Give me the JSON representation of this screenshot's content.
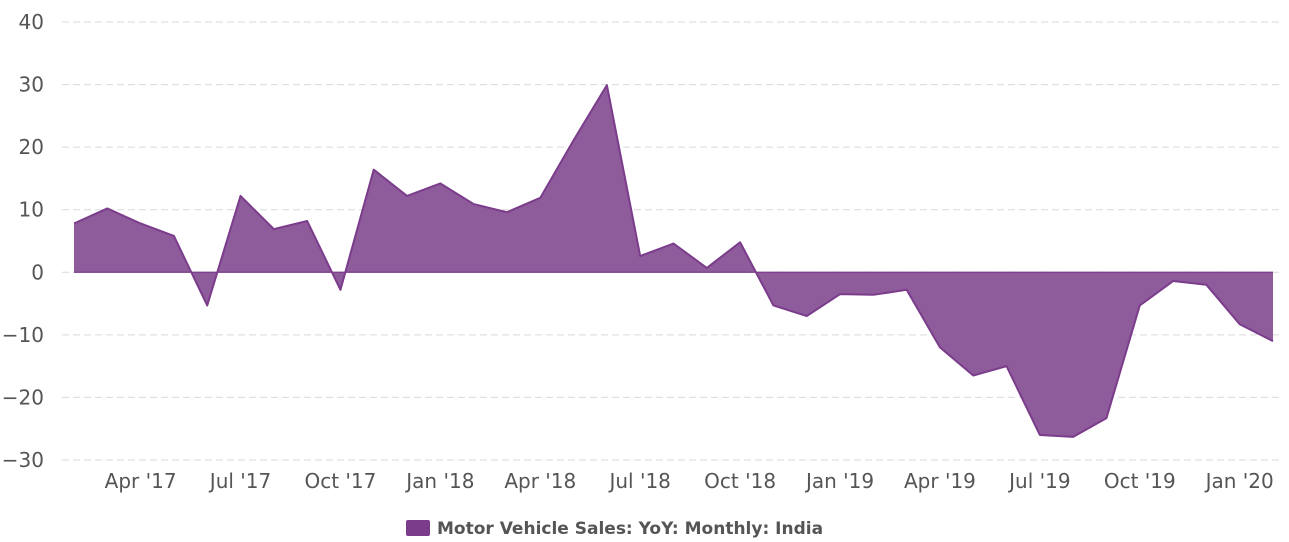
{
  "chart_data": {
    "type": "area",
    "title": "",
    "xlabel": "",
    "ylabel": "",
    "ylim": [
      -30,
      40
    ],
    "y_ticks": [
      -30,
      -20,
      -10,
      0,
      10,
      20,
      30,
      40
    ],
    "y_tick_labels": [
      "−30",
      "−20",
      "−10",
      "0",
      "10",
      "20",
      "30",
      "40"
    ],
    "x_ticks": [
      {
        "date": "2017-04",
        "label": "Apr '17"
      },
      {
        "date": "2017-07",
        "label": "Jul '17"
      },
      {
        "date": "2017-10",
        "label": "Oct '17"
      },
      {
        "date": "2018-01",
        "label": "Jan '18"
      },
      {
        "date": "2018-04",
        "label": "Apr '18"
      },
      {
        "date": "2018-07",
        "label": "Jul '18"
      },
      {
        "date": "2018-10",
        "label": "Oct '18"
      },
      {
        "date": "2019-01",
        "label": "Jan '19"
      },
      {
        "date": "2019-04",
        "label": "Apr '19"
      },
      {
        "date": "2019-07",
        "label": "Jul '19"
      },
      {
        "date": "2019-10",
        "label": "Oct '19"
      },
      {
        "date": "2020-01",
        "label": "Jan '20"
      }
    ],
    "grid": true,
    "legend_position": "bottom-center",
    "series": [
      {
        "name": "Motor Vehicle Sales: YoY: Monthly: India",
        "color": "#7b3c8c",
        "fill_color": "#8e5c9a",
        "x": [
          "2017-02",
          "2017-03",
          "2017-04",
          "2017-05",
          "2017-06",
          "2017-07",
          "2017-08",
          "2017-09",
          "2017-10",
          "2017-11",
          "2017-12",
          "2018-01",
          "2018-02",
          "2018-03",
          "2018-04",
          "2018-05",
          "2018-06",
          "2018-07",
          "2018-08",
          "2018-09",
          "2018-10",
          "2018-11",
          "2018-12",
          "2019-01",
          "2019-02",
          "2019-03",
          "2019-04",
          "2019-05",
          "2019-06",
          "2019-07",
          "2019-08",
          "2019-09",
          "2019-10",
          "2019-11",
          "2019-12",
          "2020-01",
          "2020-02"
        ],
        "values": [
          7.8,
          10.2,
          7.8,
          5.8,
          -5.3,
          12.2,
          6.9,
          8.2,
          -2.8,
          16.4,
          12.2,
          14.2,
          10.9,
          9.6,
          11.9,
          21.1,
          29.9,
          2.6,
          4.6,
          0.7,
          4.8,
          -5.3,
          -7.0,
          -3.5,
          -3.6,
          -2.8,
          -12.0,
          -16.5,
          -15.0,
          -26.0,
          -26.3,
          -23.3,
          -5.3,
          -1.4,
          -2.0,
          -8.3,
          -11.0
        ]
      }
    ]
  }
}
